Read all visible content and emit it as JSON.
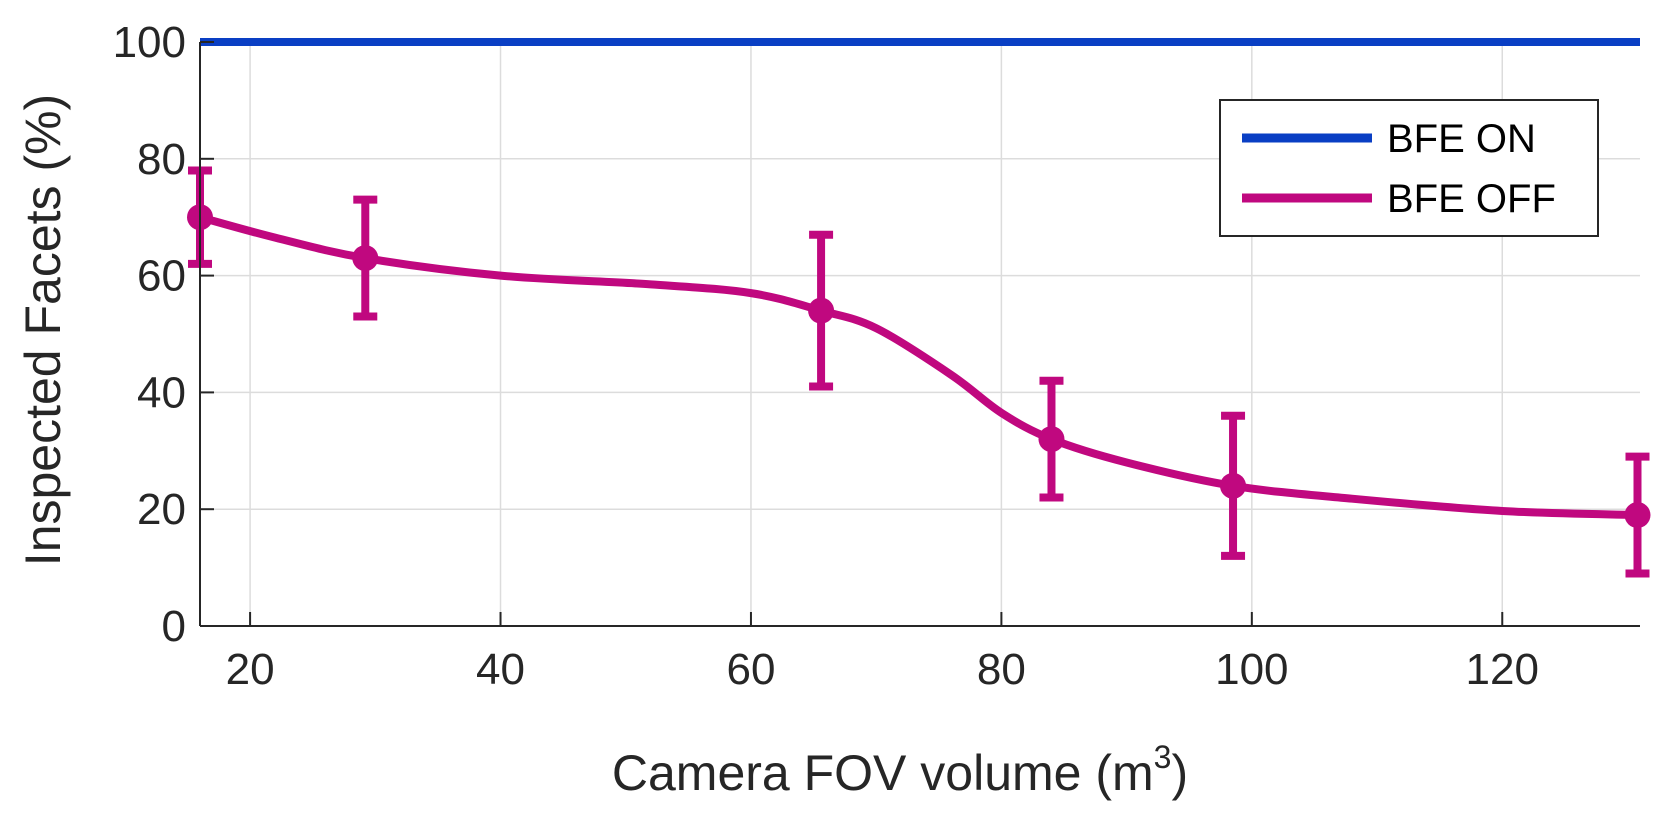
{
  "chart_data": {
    "type": "line",
    "xlabel": "Camera FOV volume (m",
    "xlabel_sup": "3",
    "xlabel_end": ")",
    "ylabel": "Inspected Facets (%)",
    "xlim": [
      16,
      131
    ],
    "ylim": [
      0,
      100
    ],
    "xticks": [
      20,
      40,
      60,
      80,
      100,
      120
    ],
    "yticks": [
      0,
      20,
      40,
      60,
      80,
      100
    ],
    "grid": true,
    "legend_position": "top-right",
    "series": [
      {
        "name": "BFE ON",
        "color": "#0a3fc4",
        "x": [
          16,
          131
        ],
        "y": [
          100,
          100
        ]
      },
      {
        "name": "BFE OFF",
        "color": "#c0087f",
        "x": [
          16,
          29.2,
          65.6,
          84,
          98.5,
          130.8
        ],
        "y": [
          70,
          63,
          54,
          32,
          24,
          19
        ],
        "err_low": [
          62,
          53,
          41,
          22,
          12,
          9
        ],
        "err_high": [
          78,
          73,
          67,
          42,
          36,
          29
        ],
        "curve": [
          [
            16,
            70
          ],
          [
            22,
            66.5
          ],
          [
            29.2,
            63
          ],
          [
            40,
            60
          ],
          [
            52,
            58.5
          ],
          [
            60,
            57
          ],
          [
            65.6,
            54
          ],
          [
            70,
            51
          ],
          [
            76,
            43
          ],
          [
            80,
            36.5
          ],
          [
            84,
            32
          ],
          [
            90,
            28
          ],
          [
            98.5,
            24
          ],
          [
            108,
            21.8
          ],
          [
            120,
            19.7
          ],
          [
            130.8,
            19
          ]
        ]
      }
    ]
  }
}
